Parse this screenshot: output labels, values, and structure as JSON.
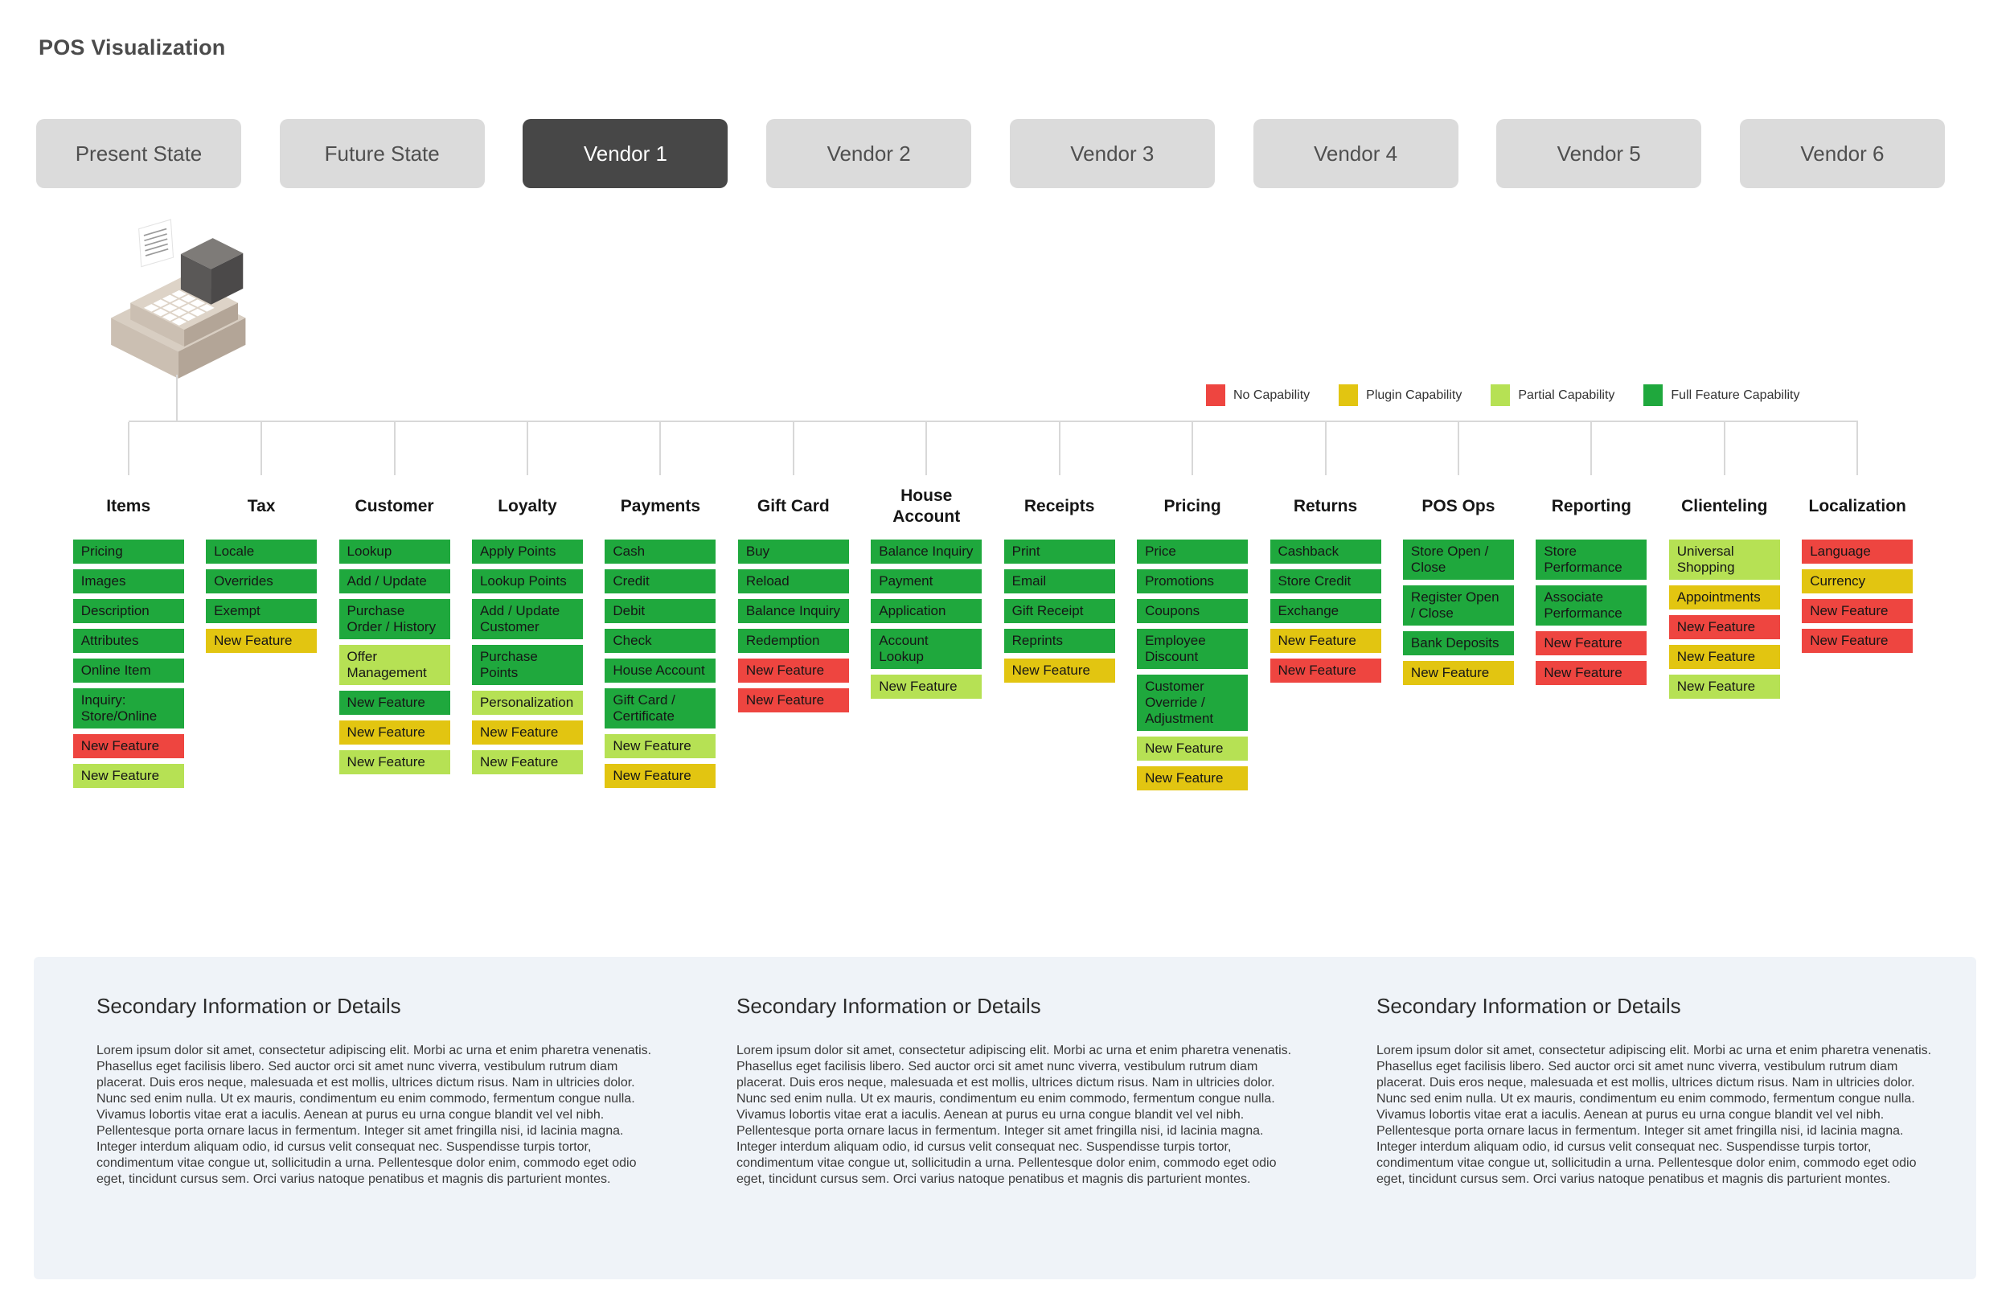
{
  "page": {
    "title": "POS Visualization"
  },
  "tabs": [
    {
      "label": "Present State",
      "active": false
    },
    {
      "label": "Future State",
      "active": false
    },
    {
      "label": "Vendor 1",
      "active": true
    },
    {
      "label": "Vendor 2",
      "active": false
    },
    {
      "label": "Vendor 3",
      "active": false
    },
    {
      "label": "Vendor 4",
      "active": false
    },
    {
      "label": "Vendor 5",
      "active": false
    },
    {
      "label": "Vendor 6",
      "active": false
    }
  ],
  "capability_colors": {
    "none": "#EE4540",
    "plugin": "#E2C511",
    "partial": "#B6E154",
    "full": "#1FA83D"
  },
  "legend": [
    {
      "key": "none",
      "label": "No Capability"
    },
    {
      "key": "plugin",
      "label": "Plugin Capability"
    },
    {
      "key": "partial",
      "label": "Partial Capability"
    },
    {
      "key": "full",
      "label": "Full Feature Capability"
    }
  ],
  "tree": {
    "root_icon": "cash-register",
    "columns": [
      {
        "header": "Items",
        "features": [
          {
            "label": "Pricing",
            "capability": "full"
          },
          {
            "label": "Images",
            "capability": "full"
          },
          {
            "label": "Description",
            "capability": "full"
          },
          {
            "label": "Attributes",
            "capability": "full"
          },
          {
            "label": "Online Item",
            "capability": "full"
          },
          {
            "label": "Inquiry: Store/Online",
            "capability": "full"
          },
          {
            "label": "New Feature",
            "capability": "none"
          },
          {
            "label": "New Feature",
            "capability": "partial"
          }
        ]
      },
      {
        "header": "Tax",
        "features": [
          {
            "label": "Locale",
            "capability": "full"
          },
          {
            "label": "Overrides",
            "capability": "full"
          },
          {
            "label": "Exempt",
            "capability": "full"
          },
          {
            "label": "New Feature",
            "capability": "plugin"
          }
        ]
      },
      {
        "header": "Customer",
        "features": [
          {
            "label": "Lookup",
            "capability": "full"
          },
          {
            "label": "Add / Update",
            "capability": "full"
          },
          {
            "label": "Purchase Order / History",
            "capability": "full"
          },
          {
            "label": "Offer Management",
            "capability": "partial"
          },
          {
            "label": "New Feature",
            "capability": "full"
          },
          {
            "label": "New Feature",
            "capability": "plugin"
          },
          {
            "label": "New Feature",
            "capability": "partial"
          }
        ]
      },
      {
        "header": "Loyalty",
        "features": [
          {
            "label": "Apply Points",
            "capability": "full"
          },
          {
            "label": "Lookup Points",
            "capability": "full"
          },
          {
            "label": "Add / Update Customer",
            "capability": "full"
          },
          {
            "label": "Purchase Points",
            "capability": "full"
          },
          {
            "label": "Personalization",
            "capability": "partial"
          },
          {
            "label": "New Feature",
            "capability": "plugin"
          },
          {
            "label": "New Feature",
            "capability": "partial"
          }
        ]
      },
      {
        "header": "Payments",
        "features": [
          {
            "label": "Cash",
            "capability": "full"
          },
          {
            "label": "Credit",
            "capability": "full"
          },
          {
            "label": "Debit",
            "capability": "full"
          },
          {
            "label": "Check",
            "capability": "full"
          },
          {
            "label": "House Account",
            "capability": "full"
          },
          {
            "label": "Gift Card / Certificate",
            "capability": "full"
          },
          {
            "label": "New Feature",
            "capability": "partial"
          },
          {
            "label": "New Feature",
            "capability": "plugin"
          }
        ]
      },
      {
        "header": "Gift Card",
        "features": [
          {
            "label": "Buy",
            "capability": "full"
          },
          {
            "label": "Reload",
            "capability": "full"
          },
          {
            "label": "Balance Inquiry",
            "capability": "full"
          },
          {
            "label": "Redemption",
            "capability": "full"
          },
          {
            "label": "New Feature",
            "capability": "none"
          },
          {
            "label": "New Feature",
            "capability": "none"
          }
        ]
      },
      {
        "header": "House Account",
        "features": [
          {
            "label": "Balance Inquiry",
            "capability": "full"
          },
          {
            "label": "Payment",
            "capability": "full"
          },
          {
            "label": "Application",
            "capability": "full"
          },
          {
            "label": "Account Lookup",
            "capability": "full"
          },
          {
            "label": "New Feature",
            "capability": "partial"
          }
        ]
      },
      {
        "header": "Receipts",
        "features": [
          {
            "label": "Print",
            "capability": "full"
          },
          {
            "label": "Email",
            "capability": "full"
          },
          {
            "label": "Gift Receipt",
            "capability": "full"
          },
          {
            "label": "Reprints",
            "capability": "full"
          },
          {
            "label": "New Feature",
            "capability": "plugin"
          }
        ]
      },
      {
        "header": "Pricing",
        "features": [
          {
            "label": "Price",
            "capability": "full"
          },
          {
            "label": "Promotions",
            "capability": "full"
          },
          {
            "label": "Coupons",
            "capability": "full"
          },
          {
            "label": "Employee Discount",
            "capability": "full"
          },
          {
            "label": "Customer Override / Adjustment",
            "capability": "full"
          },
          {
            "label": "New Feature",
            "capability": "partial"
          },
          {
            "label": "New Feature",
            "capability": "plugin"
          }
        ]
      },
      {
        "header": "Returns",
        "features": [
          {
            "label": "Cashback",
            "capability": "full"
          },
          {
            "label": "Store Credit",
            "capability": "full"
          },
          {
            "label": "Exchange",
            "capability": "full"
          },
          {
            "label": "New Feature",
            "capability": "plugin"
          },
          {
            "label": "New Feature",
            "capability": "none"
          }
        ]
      },
      {
        "header": "POS Ops",
        "features": [
          {
            "label": "Store Open / Close",
            "capability": "full"
          },
          {
            "label": "Register Open / Close",
            "capability": "full"
          },
          {
            "label": "Bank Deposits",
            "capability": "full"
          },
          {
            "label": "New Feature",
            "capability": "plugin"
          }
        ]
      },
      {
        "header": "Reporting",
        "features": [
          {
            "label": "Store Performance",
            "capability": "full"
          },
          {
            "label": "Associate Performance",
            "capability": "full"
          },
          {
            "label": "New Feature",
            "capability": "none"
          },
          {
            "label": "New Feature",
            "capability": "none"
          }
        ]
      },
      {
        "header": "Clienteling",
        "features": [
          {
            "label": "Universal Shopping",
            "capability": "partial"
          },
          {
            "label": "Appointments",
            "capability": "plugin"
          },
          {
            "label": "New Feature",
            "capability": "none"
          },
          {
            "label": "New Feature",
            "capability": "plugin"
          },
          {
            "label": "New Feature",
            "capability": "partial"
          }
        ]
      },
      {
        "header": "Localization",
        "features": [
          {
            "label": "Language",
            "capability": "none"
          },
          {
            "label": "Currency",
            "capability": "plugin"
          },
          {
            "label": "New Feature",
            "capability": "none"
          },
          {
            "label": "New Feature",
            "capability": "none"
          }
        ]
      }
    ]
  },
  "secondary_sections": [
    {
      "heading": "Secondary Information or Details",
      "paragraphs": [
        "Lorem ipsum dolor sit amet, consectetur adipiscing elit. Morbi ac urna et enim pharetra venenatis. Phasellus eget facilisis libero. Sed auctor orci sit amet nunc viverra, vestibulum rutrum diam placerat. Duis eros neque, malesuada et est mollis, ultrices dictum risus. Nam in ultricies dolor. Nunc sed enim nulla. Ut ex mauris, condimentum eu enim commodo, fermentum congue nulla. Vivamus lobortis vitae erat a iaculis. Aenean at purus eu urna congue blandit vel vel nibh.",
        "Pellentesque porta ornare lacus in fermentum. Integer sit amet fringilla nisi, id lacinia magna. Integer interdum aliquam odio, id cursus velit consequat nec. Suspendisse turpis tortor, condimentum vitae congue ut, sollicitudin a urna. Pellentesque dolor enim, commodo eget odio eget, tincidunt cursus sem. Orci varius natoque penatibus et magnis dis parturient montes."
      ]
    },
    {
      "heading": "Secondary Information or Details",
      "paragraphs": [
        "Lorem ipsum dolor sit amet, consectetur adipiscing elit. Morbi ac urna et enim pharetra venenatis. Phasellus eget facilisis libero. Sed auctor orci sit amet nunc viverra, vestibulum rutrum diam placerat. Duis eros neque, malesuada et est mollis, ultrices dictum risus. Nam in ultricies dolor. Nunc sed enim nulla. Ut ex mauris, condimentum eu enim commodo, fermentum congue nulla. Vivamus lobortis vitae erat a iaculis. Aenean at purus eu urna congue blandit vel vel nibh.",
        "Pellentesque porta ornare lacus in fermentum. Integer sit amet fringilla nisi, id lacinia magna. Integer interdum aliquam odio, id cursus velit consequat nec. Suspendisse turpis tortor, condimentum vitae congue ut, sollicitudin a urna. Pellentesque dolor enim, commodo eget odio eget, tincidunt cursus sem. Orci varius natoque penatibus et magnis dis parturient montes."
      ]
    },
    {
      "heading": "Secondary Information or Details",
      "paragraphs": [
        "Lorem ipsum dolor sit amet, consectetur adipiscing elit. Morbi ac urna et enim pharetra venenatis. Phasellus eget facilisis libero. Sed auctor orci sit amet nunc viverra, vestibulum rutrum diam placerat. Duis eros neque, malesuada et est mollis, ultrices dictum risus. Nam in ultricies dolor. Nunc sed enim nulla. Ut ex mauris, condimentum eu enim commodo, fermentum congue nulla. Vivamus lobortis vitae erat a iaculis. Aenean at purus eu urna congue blandit vel vel nibh.",
        "Pellentesque porta ornare lacus in fermentum. Integer sit amet fringilla nisi, id lacinia magna. Integer interdum aliquam odio, id cursus velit consequat nec. Suspendisse turpis tortor, condimentum vitae congue ut, sollicitudin a urna. Pellentesque dolor enim, commodo eget odio eget, tincidunt cursus sem. Orci varius natoque penatibus et magnis dis parturient montes."
      ]
    }
  ]
}
